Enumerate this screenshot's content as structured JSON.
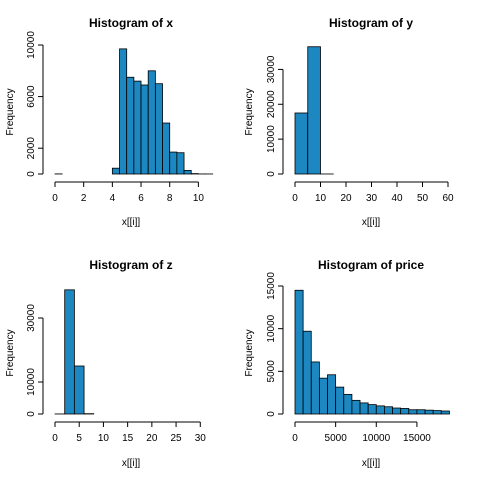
{
  "style": {
    "bar_fill": "#1c87c0",
    "bar_stroke": "#000000",
    "background": "#ffffff"
  },
  "chart_data": [
    {
      "type": "bar",
      "title": "Histogram of x",
      "xlabel": "x[[i]]",
      "ylabel": "Frequency",
      "xlim": [
        0,
        10.74
      ],
      "ylim": [
        0,
        10000
      ],
      "xticks": [
        0,
        2,
        4,
        6,
        8,
        10
      ],
      "yticks": [
        0,
        2000,
        6000,
        10000
      ],
      "bin_edges": [
        0,
        0.5,
        1,
        1.5,
        2,
        2.5,
        3,
        3.5,
        4,
        4.5,
        5,
        5.5,
        6,
        6.5,
        7,
        7.5,
        8,
        8.5,
        9,
        9.5,
        10,
        10.5,
        11
      ],
      "values": [
        8,
        0,
        0,
        0,
        0,
        0,
        0,
        0,
        450,
        9700,
        7500,
        7200,
        6900,
        8000,
        7000,
        3950,
        1700,
        1650,
        280,
        30,
        5,
        3
      ]
    },
    {
      "type": "bar",
      "title": "Histogram of y",
      "xlabel": "x[[i]]",
      "ylabel": "Frequency",
      "xlim": [
        0,
        60
      ],
      "ylim": [
        0,
        37000
      ],
      "xticks": [
        0,
        10,
        20,
        30,
        40,
        50,
        60
      ],
      "yticks": [
        0,
        10000,
        20000,
        30000
      ],
      "bin_edges": [
        0,
        5,
        10,
        15,
        20,
        25,
        30,
        35,
        40,
        45,
        50,
        55,
        60
      ],
      "values": [
        17500,
        36500,
        10,
        0,
        0,
        0,
        1,
        0,
        0,
        0,
        0,
        1
      ]
    },
    {
      "type": "bar",
      "title": "Histogram of z",
      "xlabel": "x[[i]]",
      "ylabel": "Frequency",
      "xlim": [
        0,
        31.8
      ],
      "ylim": [
        0,
        40000
      ],
      "xticks": [
        0,
        5,
        10,
        15,
        20,
        25,
        30
      ],
      "yticks": [
        0,
        10000,
        30000
      ],
      "bin_edges": [
        0,
        2,
        4,
        6,
        8,
        10,
        12,
        14,
        16,
        18,
        20,
        22,
        24,
        26,
        28,
        30,
        32
      ],
      "values": [
        20,
        38800,
        15000,
        100,
        1,
        0,
        0,
        0,
        0,
        0,
        0,
        0,
        0,
        0,
        0,
        1
      ]
    },
    {
      "type": "bar",
      "title": "Histogram of price",
      "xlabel": "x[[i]]",
      "ylabel": "Frequency",
      "xlim": [
        0,
        18823
      ],
      "ylim": [
        0,
        15000
      ],
      "xticks": [
        0,
        5000,
        10000,
        15000
      ],
      "yticks": [
        0,
        5000,
        10000,
        15000
      ],
      "bin_edges": [
        0,
        1000,
        2000,
        3000,
        4000,
        5000,
        6000,
        7000,
        8000,
        9000,
        10000,
        11000,
        12000,
        13000,
        14000,
        15000,
        16000,
        17000,
        18000,
        19000
      ],
      "values": [
        14500,
        9700,
        6100,
        4200,
        4600,
        3150,
        2300,
        1600,
        1300,
        1100,
        950,
        850,
        700,
        650,
        500,
        500,
        450,
        400,
        350
      ]
    }
  ]
}
